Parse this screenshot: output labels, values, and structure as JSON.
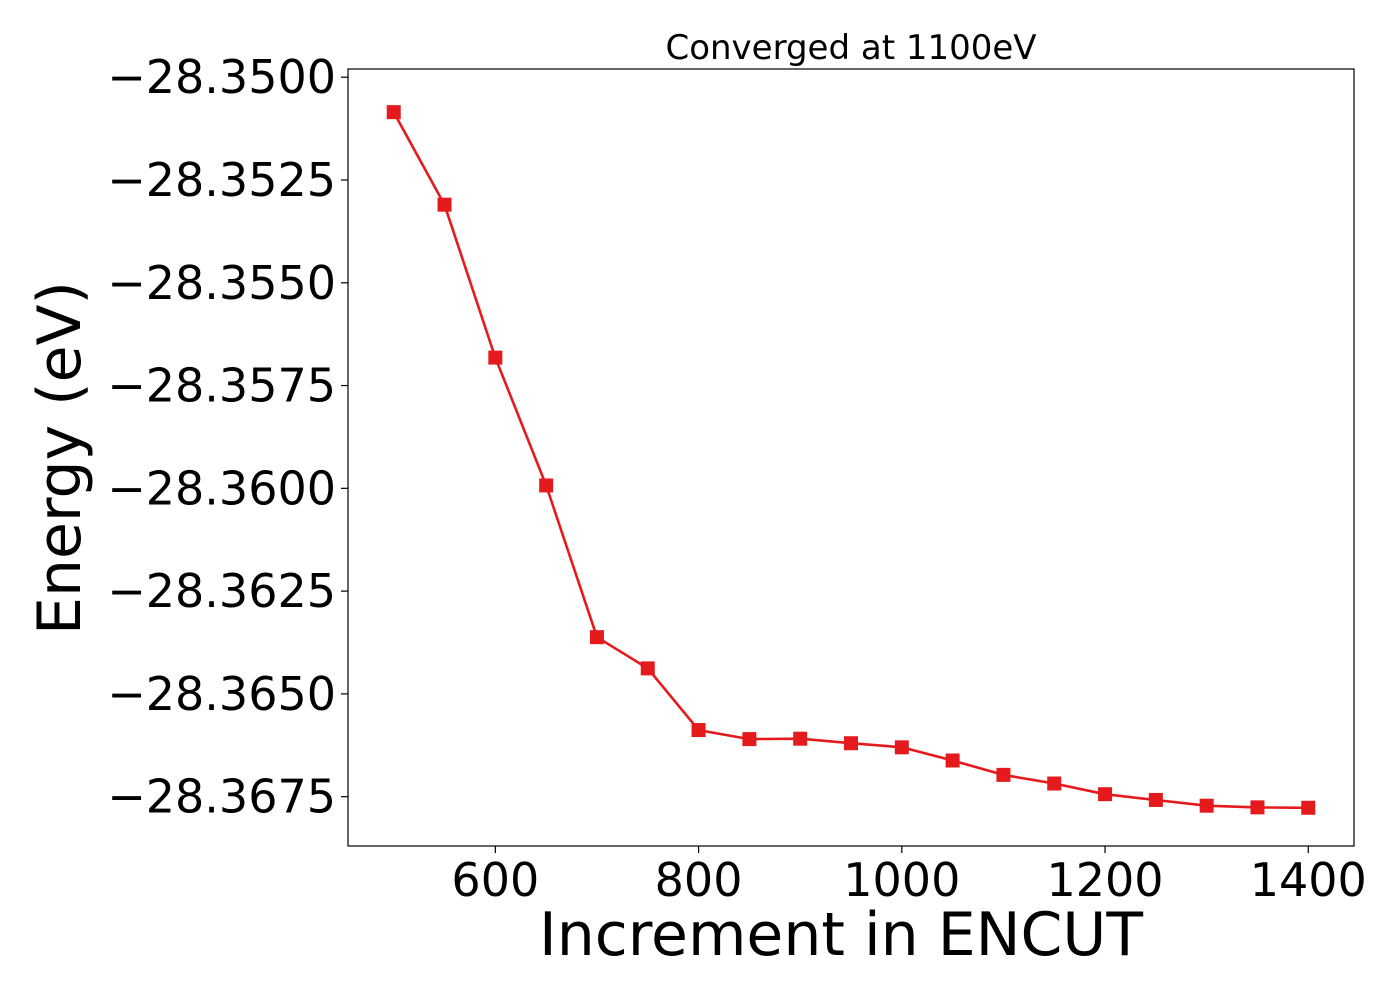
{
  "chart_data": {
    "type": "line",
    "title": "Converged at 1100eV",
    "xlabel": "Increment in ENCUT",
    "ylabel": "Energy (eV)",
    "xlim": [
      455,
      1445
    ],
    "ylim": [
      -28.3687,
      -28.3498
    ],
    "x_ticks": [
      600,
      800,
      1000,
      1200,
      1400
    ],
    "x_tick_labels": [
      "600",
      "800",
      "1000",
      "1200",
      "1400"
    ],
    "y_ticks": [
      -28.35,
      -28.3525,
      -28.355,
      -28.3575,
      -28.36,
      -28.3625,
      -28.365,
      -28.3675
    ],
    "y_tick_labels": [
      "−28.3500",
      "−28.3525",
      "−28.3550",
      "−28.3575",
      "−28.3600",
      "−28.3625",
      "−28.3650",
      "−28.3675"
    ],
    "grid": false,
    "legend": "none",
    "series": [
      {
        "marker": "square",
        "color": "#e41a1c",
        "x": [
          500,
          550,
          600,
          650,
          700,
          750,
          800,
          850,
          900,
          950,
          1000,
          1050,
          1100,
          1150,
          1200,
          1250,
          1300,
          1350,
          1400
        ],
        "y": [
          -28.35085,
          -28.3531,
          -28.35682,
          -28.35993,
          -28.36362,
          -28.36438,
          -28.36588,
          -28.3661,
          -28.36609,
          -28.3662,
          -28.3663,
          -28.36662,
          -28.36697,
          -28.36718,
          -28.36744,
          -28.36758,
          -28.36772,
          -28.36776,
          -28.36777
        ]
      }
    ]
  }
}
